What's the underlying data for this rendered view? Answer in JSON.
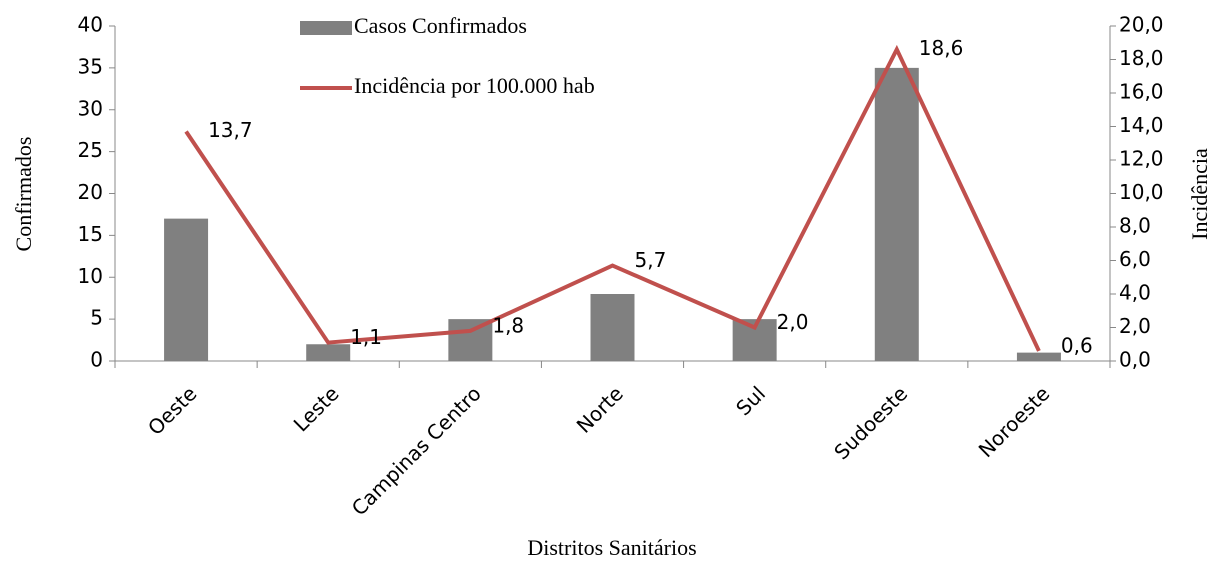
{
  "chart_data": {
    "type": "bar",
    "x_label": "Distritos Sanitários",
    "y_label": "Confirmados",
    "y2_label": "Incidência",
    "categories": [
      "Oeste",
      "Leste",
      "Campinas Centro",
      "Norte",
      "Sul",
      "Sudoeste",
      "Noroeste"
    ],
    "series": [
      {
        "name": "Casos Confirmados",
        "type": "bar",
        "color": "#808080",
        "values": [
          17,
          2,
          5,
          8,
          5,
          35,
          1
        ]
      },
      {
        "name": "Incidência por 100.000 hab",
        "type": "line",
        "axis": "y2",
        "color": "#c0504d",
        "values": [
          13.7,
          1.1,
          1.8,
          5.7,
          2.0,
          18.6,
          0.6
        ],
        "value_labels": [
          "13,7",
          "1,1",
          "1,8",
          "5,7",
          "2,0",
          "18,6",
          "0,6"
        ]
      }
    ],
    "ylim": [
      0,
      40
    ],
    "yticks": [
      0,
      5,
      10,
      15,
      20,
      25,
      30,
      35,
      40
    ],
    "y2lim": [
      0,
      20
    ],
    "y2ticks": [
      {
        "value": 0,
        "label": "0,0"
      },
      {
        "value": 2,
        "label": "2,0"
      },
      {
        "value": 4,
        "label": "4,0"
      },
      {
        "value": 6,
        "label": "6,0"
      },
      {
        "value": 8,
        "label": "8,0"
      },
      {
        "value": 10,
        "label": "10,0"
      },
      {
        "value": 12,
        "label": "12,0"
      },
      {
        "value": 14,
        "label": "14,0"
      },
      {
        "value": 16,
        "label": "16,0"
      },
      {
        "value": 18,
        "label": "18,0"
      },
      {
        "value": 20,
        "label": "20,0"
      }
    ],
    "legend": "top"
  }
}
